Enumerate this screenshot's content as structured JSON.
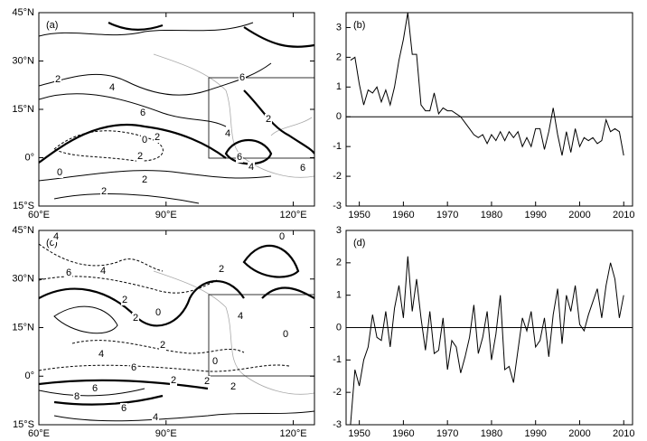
{
  "chart_data": [
    {
      "type": "map",
      "panel_label": "(a)",
      "xlim": [
        60,
        125
      ],
      "xticks": [
        {
          "value": 60,
          "label": "60°E"
        },
        {
          "value": 90,
          "label": "90°E"
        },
        {
          "value": 120,
          "label": "120°E"
        }
      ],
      "ylim": [
        -15,
        45
      ],
      "yticks": [
        {
          "value": -15,
          "label": "15°S"
        },
        {
          "value": 0,
          "label": "0°"
        },
        {
          "value": 15,
          "label": "15°N"
        },
        {
          "value": 30,
          "label": "30°N"
        },
        {
          "value": 45,
          "label": "45°N"
        }
      ],
      "contour_labels": [
        2,
        4,
        6,
        0,
        2,
        2,
        0,
        2,
        2,
        6,
        2,
        4,
        6,
        4,
        6
      ]
    },
    {
      "type": "line",
      "panel_label": "(b)",
      "color": "#000000",
      "reference_line": 0,
      "x": [
        1948,
        1949,
        1950,
        1951,
        1952,
        1953,
        1954,
        1955,
        1956,
        1957,
        1958,
        1959,
        1960,
        1961,
        1962,
        1963,
        1964,
        1965,
        1966,
        1967,
        1968,
        1969,
        1970,
        1971,
        1972,
        1973,
        1974,
        1975,
        1976,
        1977,
        1978,
        1979,
        1980,
        1981,
        1982,
        1983,
        1984,
        1985,
        1986,
        1987,
        1988,
        1989,
        1990,
        1991,
        1992,
        1993,
        1994,
        1995,
        1996,
        1997,
        1998,
        1999,
        2000,
        2001,
        2002,
        2003,
        2004,
        2005,
        2006,
        2007,
        2008,
        2009,
        2010
      ],
      "values": [
        1.9,
        2.0,
        1.1,
        0.4,
        0.9,
        0.8,
        1.0,
        0.5,
        0.9,
        0.4,
        1.0,
        1.9,
        2.6,
        3.5,
        2.1,
        2.1,
        0.4,
        0.2,
        0.2,
        0.8,
        0.1,
        0.3,
        0.2,
        0.2,
        0.1,
        0.0,
        -0.2,
        -0.4,
        -0.6,
        -0.7,
        -0.6,
        -0.9,
        -0.6,
        -0.8,
        -0.5,
        -0.8,
        -0.5,
        -0.7,
        -0.5,
        -1.0,
        -0.7,
        -1.0,
        -0.4,
        -0.4,
        -1.1,
        -0.5,
        0.3,
        -0.6,
        -1.3,
        -0.5,
        -1.2,
        -0.4,
        -1.0,
        -0.7,
        -0.8,
        -0.7,
        -0.9,
        -0.8,
        -0.1,
        -0.5,
        -0.4,
        -0.5,
        -1.3
      ],
      "xlim": [
        1947,
        2012
      ],
      "xticks": [
        1950,
        1960,
        1970,
        1980,
        1990,
        2000,
        2010
      ],
      "ylim": [
        -3,
        3.5
      ],
      "yticks": [
        -3,
        -2,
        -1,
        0,
        1,
        2,
        3
      ]
    },
    {
      "type": "map",
      "panel_label": "(c)",
      "xlim": [
        60,
        125
      ],
      "xticks": [
        {
          "value": 60,
          "label": "60°E"
        },
        {
          "value": 90,
          "label": "90°E"
        },
        {
          "value": 120,
          "label": "120°E"
        }
      ],
      "ylim": [
        -15,
        45
      ],
      "yticks": [
        {
          "value": -15,
          "label": "15°S"
        },
        {
          "value": 0,
          "label": "0°"
        },
        {
          "value": 15,
          "label": "15°N"
        },
        {
          "value": 30,
          "label": "30°N"
        },
        {
          "value": 45,
          "label": "45°N"
        }
      ],
      "contour_labels": [
        4,
        6,
        4,
        2,
        2,
        0,
        2,
        0,
        2,
        4,
        6,
        8,
        6,
        6,
        4,
        2,
        2,
        0,
        2,
        0,
        4
      ]
    },
    {
      "type": "line",
      "panel_label": "(d)",
      "color": "#000000",
      "reference_line": 0,
      "x": [
        1948,
        1949,
        1950,
        1951,
        1952,
        1953,
        1954,
        1955,
        1956,
        1957,
        1958,
        1959,
        1960,
        1961,
        1962,
        1963,
        1964,
        1965,
        1966,
        1967,
        1968,
        1969,
        1970,
        1971,
        1972,
        1973,
        1974,
        1975,
        1976,
        1977,
        1978,
        1979,
        1980,
        1981,
        1982,
        1983,
        1984,
        1985,
        1986,
        1987,
        1988,
        1989,
        1990,
        1991,
        1992,
        1993,
        1994,
        1995,
        1996,
        1997,
        1998,
        1999,
        2000,
        2001,
        2002,
        2003,
        2004,
        2005,
        2006,
        2007,
        2008,
        2009,
        2010
      ],
      "values": [
        -3.0,
        -1.3,
        -1.8,
        -1.0,
        -0.6,
        0.4,
        -0.3,
        -0.4,
        0.5,
        -0.6,
        0.6,
        1.3,
        0.3,
        2.2,
        0.5,
        1.5,
        0.3,
        -0.7,
        0.5,
        -0.8,
        -0.7,
        0.3,
        -1.3,
        -0.4,
        -0.6,
        -1.4,
        -0.9,
        -0.3,
        0.7,
        -0.8,
        -0.3,
        0.5,
        -1.0,
        -0.2,
        1.0,
        -1.3,
        -1.2,
        -1.7,
        -0.7,
        0.3,
        -0.1,
        0.5,
        -0.6,
        -0.4,
        0.3,
        -0.9,
        0.4,
        1.2,
        -0.5,
        1.0,
        0.5,
        1.3,
        0.1,
        -0.1,
        0.4,
        0.8,
        1.2,
        0.3,
        1.3,
        2.0,
        1.5,
        0.3,
        1.0
      ],
      "xlim": [
        1947,
        2012
      ],
      "xticks": [
        1950,
        1960,
        1970,
        1980,
        1990,
        2000,
        2010
      ],
      "ylim": [
        -3,
        3
      ],
      "yticks": [
        -3,
        -2,
        -1,
        0,
        1,
        2,
        3
      ]
    }
  ]
}
